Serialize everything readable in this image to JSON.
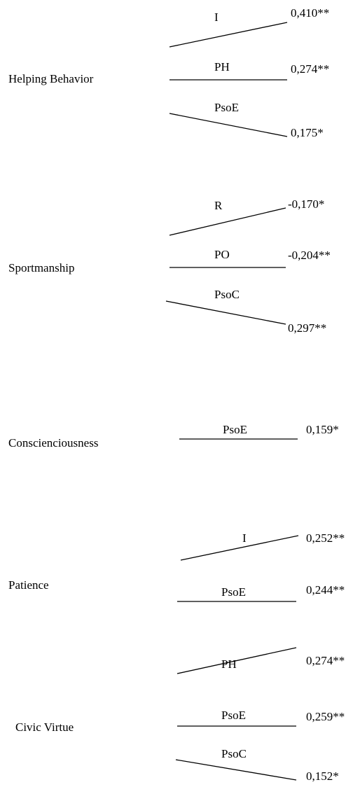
{
  "groups": [
    {
      "name": "Helping Behavior",
      "paths": [
        {
          "label": "I",
          "value": "0,410**"
        },
        {
          "label": "PH",
          "value": "0,274**"
        },
        {
          "label": "PsoE",
          "value": "0,175*"
        }
      ]
    },
    {
      "name": "Sportmanship",
      "paths": [
        {
          "label": "R",
          "value": "-0,170*"
        },
        {
          "label": "PO",
          "value": "-0,204**"
        },
        {
          "label": "PsoC",
          "value": "0,297**"
        }
      ]
    },
    {
      "name": "Conscienciousness",
      "paths": [
        {
          "label": "PsoE",
          "value": "0,159*"
        }
      ]
    },
    {
      "name": "Patience",
      "paths": [
        {
          "label": "I",
          "value": "0,252**"
        },
        {
          "label": "PsoE",
          "value": "0,244**"
        }
      ]
    },
    {
      "name": "Civic Virtue",
      "paths": [
        {
          "label": "PH",
          "value": "0,274**"
        },
        {
          "label": "PsoE",
          "value": "0,259**"
        },
        {
          "label": "PsoC",
          "value": "0,152*"
        }
      ]
    }
  ],
  "colors": {
    "line": "#000000",
    "text": "#000000",
    "background": "#ffffff"
  }
}
